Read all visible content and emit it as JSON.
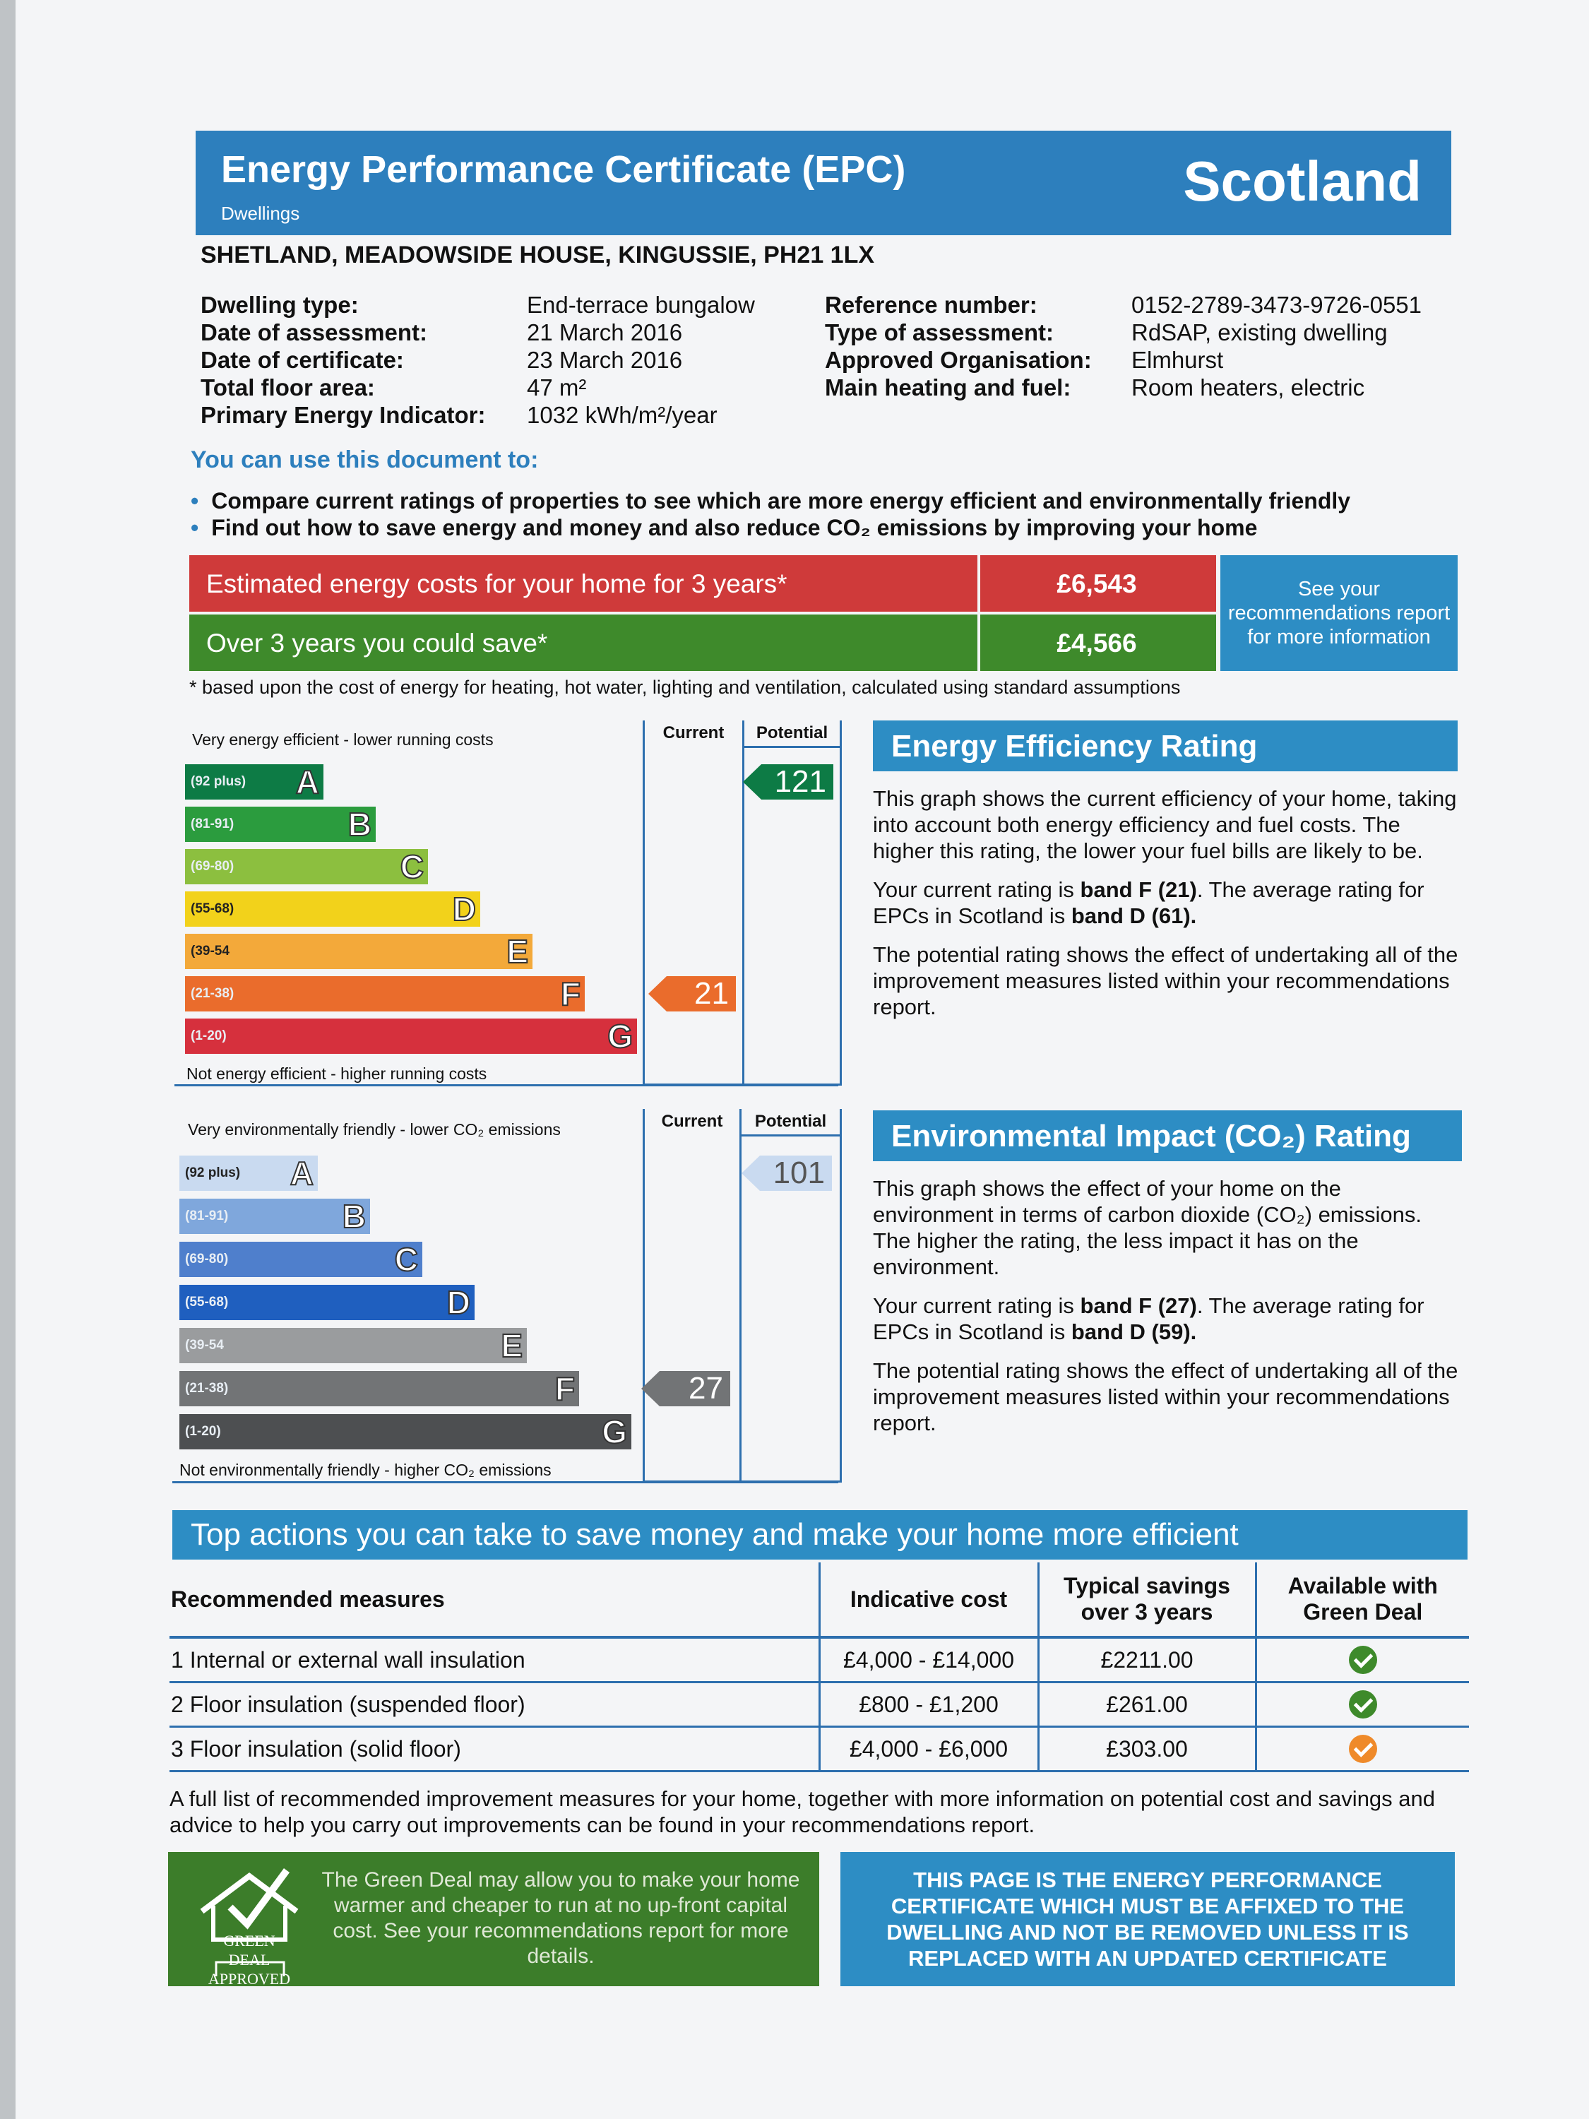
{
  "header": {
    "title": "Energy Performance Certificate (EPC)",
    "subtitle": "Dwellings",
    "region": "Scotland"
  },
  "address": "SHETLAND, MEADOWSIDE HOUSE, KINGUSSIE, PH21 1LX",
  "details_left": [
    {
      "label": "Dwelling type:",
      "value": "End-terrace bungalow"
    },
    {
      "label": "Date of assessment:",
      "value": "21 March 2016"
    },
    {
      "label": "Date of certificate:",
      "value": "23 March 2016"
    },
    {
      "label": "Total floor area:",
      "value": "47 m²"
    },
    {
      "label": "Primary Energy Indicator:",
      "value": "1032 kWh/m²/year"
    }
  ],
  "details_right": [
    {
      "label": "Reference number:",
      "value": "0152-2789-3473-9726-0551"
    },
    {
      "label": "Type of assessment:",
      "value": "RdSAP, existing dwelling"
    },
    {
      "label": "Approved Organisation:",
      "value": "Elmhurst"
    },
    {
      "label": "Main heating and fuel:",
      "value": "Room heaters, electric"
    }
  ],
  "use_heading": "You can use this document to:",
  "bullets": [
    "Compare current ratings of properties to see which are more energy efficient and environmentally friendly",
    "Find out how to save energy and money and also reduce CO₂ emissions by improving your home"
  ],
  "costs": {
    "estimated_label": "Estimated energy costs for your home for 3 years*",
    "estimated_value": "£6,543",
    "save_label": "Over 3 years you could save*",
    "save_value": "£4,566",
    "see_recs": "See your recommendations report for more information",
    "footnote": "* based upon the cost of energy for heating, hot water, lighting and ventilation, calculated using standard assumptions",
    "estimated_color": "#cf3a3a",
    "save_color": "#3e8a2b"
  },
  "energy_chart": {
    "top_text": "Very energy efficient - lower running costs",
    "bottom_text": "Not energy efficient - higher running costs",
    "col_current": "Current",
    "col_potential": "Potential",
    "bands": [
      {
        "range": "(92 plus)",
        "letter": "A",
        "color": "#0d7b45"
      },
      {
        "range": "(81-91)",
        "letter": "B",
        "color": "#2b9c3e"
      },
      {
        "range": "(69-80)",
        "letter": "C",
        "color": "#8cbf3f"
      },
      {
        "range": "(55-68)",
        "letter": "D",
        "color": "#f2d21b"
      },
      {
        "range": "(39-54",
        "letter": "E",
        "color": "#f3a93a"
      },
      {
        "range": "(21-38)",
        "letter": "F",
        "color": "#ea6c2c"
      },
      {
        "range": "(1-20)",
        "letter": "G",
        "color": "#d6303d"
      }
    ],
    "current": "21",
    "potential": "121",
    "current_color": "#ea6c2c",
    "potential_color": "#0d7b45"
  },
  "env_chart": {
    "top_text": "Very environmentally friendly - lower CO₂ emissions",
    "bottom_text": "Not environmentally friendly - higher CO₂ emissions",
    "col_current": "Current",
    "col_potential": "Potential",
    "bands": [
      {
        "range": "(92 plus)",
        "letter": "A",
        "color": "#c9daf0"
      },
      {
        "range": "(81-91)",
        "letter": "B",
        "color": "#7fa7dc"
      },
      {
        "range": "(69-80)",
        "letter": "C",
        "color": "#4f7fcc"
      },
      {
        "range": "(55-68)",
        "letter": "D",
        "color": "#1f5fbf"
      },
      {
        "range": "(39-54",
        "letter": "E",
        "color": "#9a9c9e"
      },
      {
        "range": "(21-38)",
        "letter": "F",
        "color": "#727476"
      },
      {
        "range": "(1-20)",
        "letter": "G",
        "color": "#4d4f51"
      }
    ],
    "current": "27",
    "potential": "101",
    "current_color": "#727476",
    "potential_color": "#c9daf0"
  },
  "efficiency_panel": {
    "title": "Energy Efficiency Rating",
    "p1": "This graph shows the current efficiency of your home, taking into account both energy efficiency and fuel costs. The higher this rating, the lower your fuel bills are likely to be.",
    "p2_a": "Your current rating is ",
    "p2_b": "band F (21)",
    "p2_c": ". The average rating for EPCs in Scotland is ",
    "p2_d": "band D (61).",
    "p3": "The potential rating shows the effect of undertaking all of the improvement measures listed within your recommendations report."
  },
  "environment_panel": {
    "title": "Environmental Impact (CO₂) Rating",
    "p1": "This graph shows the effect of your home on the environment in terms of carbon dioxide (CO₂) emissions. The higher the rating, the less impact it has on the environment.",
    "p2_a": "Your current rating is ",
    "p2_b": "band F (27)",
    "p2_c": ". The average rating for EPCs in Scotland is ",
    "p2_d": "band D (59).",
    "p3": "The potential rating shows the effect of undertaking all of the improvement measures listed within your recommendations report."
  },
  "top_actions": {
    "title": "Top actions you can take to save money and make your home more efficient",
    "headers": [
      "Recommended measures",
      "Indicative cost",
      "Typical savings over 3 years",
      "Available with Green Deal"
    ],
    "rows": [
      {
        "measure": "1 Internal or external wall insulation",
        "cost": "£4,000 - £14,000",
        "savings": "£2211.00",
        "green_color": "#3e8a2b"
      },
      {
        "measure": "2 Floor insulation (suspended floor)",
        "cost": "£800 - £1,200",
        "savings": "£261.00",
        "green_color": "#3e8a2b"
      },
      {
        "measure": "3 Floor insulation (solid floor)",
        "cost": "£4,000 - £6,000",
        "savings": "£303.00",
        "green_color": "#ef8a2a"
      }
    ]
  },
  "full_list_text": "A full list of recommended improvement measures for your home, together with more information on potential cost and savings and advice to help you carry out improvements can be found in your recommendations report.",
  "green_deal": {
    "text": "The Green Deal may allow you to make your home warmer and cheaper to run at no up-front capital cost. See your recommendations report for more details.",
    "logo_line1": "GREEN DEAL",
    "logo_line2": "APPROVED"
  },
  "affix_notice": "THIS PAGE IS THE ENERGY PERFORMANCE CERTIFICATE WHICH MUST BE AFFIXED TO THE DWELLING AND NOT BE REMOVED UNLESS IT IS REPLACED WITH AN UPDATED CERTIFICATE"
}
